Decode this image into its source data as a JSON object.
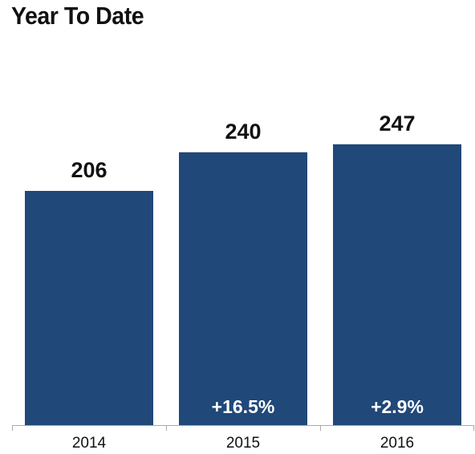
{
  "chart_data": {
    "type": "bar",
    "title": "Year To Date",
    "categories": [
      "2014",
      "2015",
      "2016"
    ],
    "values": [
      206,
      240,
      247
    ],
    "value_labels": [
      "206",
      "240",
      "247"
    ],
    "change_labels": [
      "",
      "+16.5%",
      "+2.9%"
    ],
    "xlabel": "",
    "ylabel": "",
    "ylim": [
      0,
      270
    ],
    "grid": false,
    "legend": "none",
    "colors": {
      "bar": "#204879",
      "axis": "#aaaaaa",
      "text": "#111111",
      "change_text": "#ffffff"
    }
  }
}
